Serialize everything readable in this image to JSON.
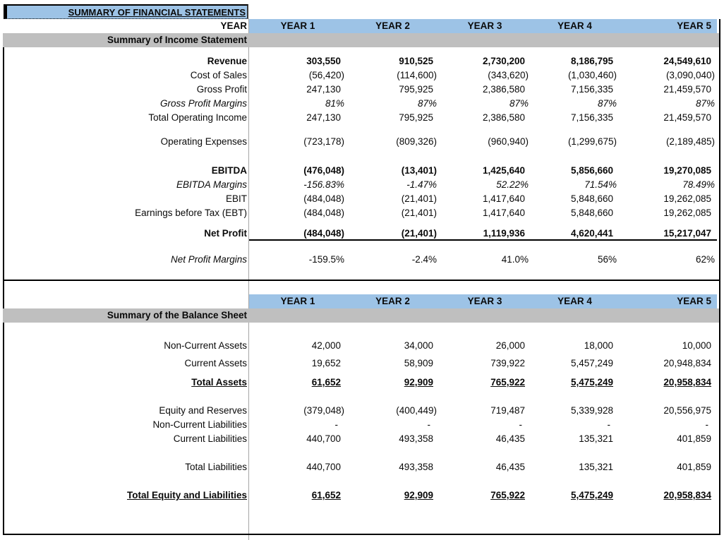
{
  "title": "SUMMARY OF FINANCIAL STATEMENTS",
  "years": [
    "YEAR 1",
    "YEAR 2",
    "YEAR 3",
    "YEAR 4",
    "YEAR 5"
  ],
  "colors": {
    "header_blue": "#9DC3E6",
    "band_gray": "#BFBFBF",
    "grid_gray": "#A6A6A6",
    "border_black": "#000000"
  },
  "sections": [
    {
      "id": "section-income",
      "name": "income-statement",
      "rows": [
        {
          "type": "year_header",
          "label": "YEAR"
        },
        {
          "type": "band",
          "label": "Summary of Income Statement"
        },
        {
          "type": "data",
          "gap": 10,
          "bold": true,
          "label": "Revenue",
          "values": [
            "303,550",
            "910,525",
            "2,730,200",
            "8,186,795",
            "24,549,610"
          ]
        },
        {
          "type": "data",
          "label": "Cost of Sales",
          "values": [
            "(56,420)",
            "(114,600)",
            "(343,620)",
            "(1,030,460)",
            "(3,090,040)"
          ]
        },
        {
          "type": "data",
          "label": "Gross Profit",
          "values": [
            "247,130",
            "795,925",
            "2,386,580",
            "7,156,335",
            "21,459,570"
          ]
        },
        {
          "type": "data",
          "label_italic": true,
          "values_italic": true,
          "label": "Gross Profit Margins",
          "values": [
            "81%",
            "87%",
            "87%",
            "87%",
            "87%"
          ]
        },
        {
          "type": "data",
          "label": "Total Operating Income",
          "values": [
            "247,130",
            "795,925",
            "2,386,580",
            "7,156,335",
            "21,459,570"
          ]
        },
        {
          "type": "data",
          "gap": 14,
          "label": "Operating Expenses",
          "values": [
            "(723,178)",
            "(809,326)",
            "(960,940)",
            "(1,299,675)",
            "(2,189,485)"
          ]
        },
        {
          "type": "data",
          "gap": 21,
          "bold": true,
          "label": "EBITDA",
          "values": [
            "(476,048)",
            "(13,401)",
            "1,425,640",
            "5,856,660",
            "19,270,085"
          ]
        },
        {
          "type": "data",
          "label_italic": true,
          "values_italic": true,
          "label": "EBITDA Margins",
          "values": [
            "-156.83%",
            "-1.47%",
            "52.22%",
            "71.54%",
            "78.49%"
          ]
        },
        {
          "type": "data",
          "label": "EBIT",
          "values": [
            "(484,048)",
            "(21,401)",
            "1,417,640",
            "5,848,660",
            "19,262,085"
          ]
        },
        {
          "type": "data",
          "label": "Earnings before Tax (EBT)",
          "values": [
            "(484,048)",
            "(21,401)",
            "1,417,640",
            "5,848,660",
            "19,262,085"
          ]
        },
        {
          "type": "data",
          "gap": 9,
          "bold": true,
          "underline": "cell",
          "label": "Net Profit",
          "values": [
            "(484,048)",
            "(21,401)",
            "1,119,936",
            "4,620,441",
            "15,217,047"
          ]
        },
        {
          "type": "data",
          "gap": 17,
          "label_italic": true,
          "label": "Net Profit Margins",
          "values": [
            "-159.5%",
            "-2.4%",
            "41.0%",
            "56%",
            "62%"
          ]
        }
      ]
    },
    {
      "id": "section-balance",
      "name": "balance-sheet",
      "rows": [
        {
          "type": "year_header",
          "gap": 19,
          "label": ""
        },
        {
          "type": "band",
          "label": "Summary of the Balance Sheet"
        },
        {
          "type": "data",
          "gap": 23,
          "label": "Non-Current Assets",
          "values": [
            "42,000",
            "34,000",
            "26,000",
            "18,000",
            "10,000"
          ]
        },
        {
          "type": "data",
          "gap": 5,
          "label": "Current Assets",
          "values": [
            "19,652",
            "58,909",
            "739,922",
            "5,457,249",
            "20,948,834"
          ]
        },
        {
          "type": "data",
          "gap": 7,
          "bold": true,
          "underline": "text",
          "label": "Total Assets",
          "values": [
            "61,652",
            "92,909",
            "765,922",
            "5,475,249",
            "20,958,834"
          ]
        },
        {
          "type": "data",
          "gap": 20,
          "label": "Equity and Reserves",
          "values": [
            "(379,048)",
            "(400,449)",
            "719,487",
            "5,339,928",
            "20,556,975"
          ]
        },
        {
          "type": "data",
          "label": "Non-Current Liabilities",
          "values": [
            "-",
            "-",
            "-",
            "-",
            "-"
          ]
        },
        {
          "type": "data",
          "label": "Current Liabilities",
          "values": [
            "440,700",
            "493,358",
            "46,435",
            "135,321",
            "401,859"
          ]
        },
        {
          "type": "data",
          "gap": 20,
          "label": "Total Liabilities",
          "values": [
            "440,700",
            "493,358",
            "46,435",
            "135,321",
            "401,859"
          ]
        },
        {
          "type": "data",
          "gap": 20,
          "bold": true,
          "underline": "text",
          "label": "Total Equity and Liabilities",
          "values": [
            "61,652",
            "92,909",
            "765,922",
            "5,475,249",
            "20,958,834"
          ]
        }
      ]
    }
  ]
}
